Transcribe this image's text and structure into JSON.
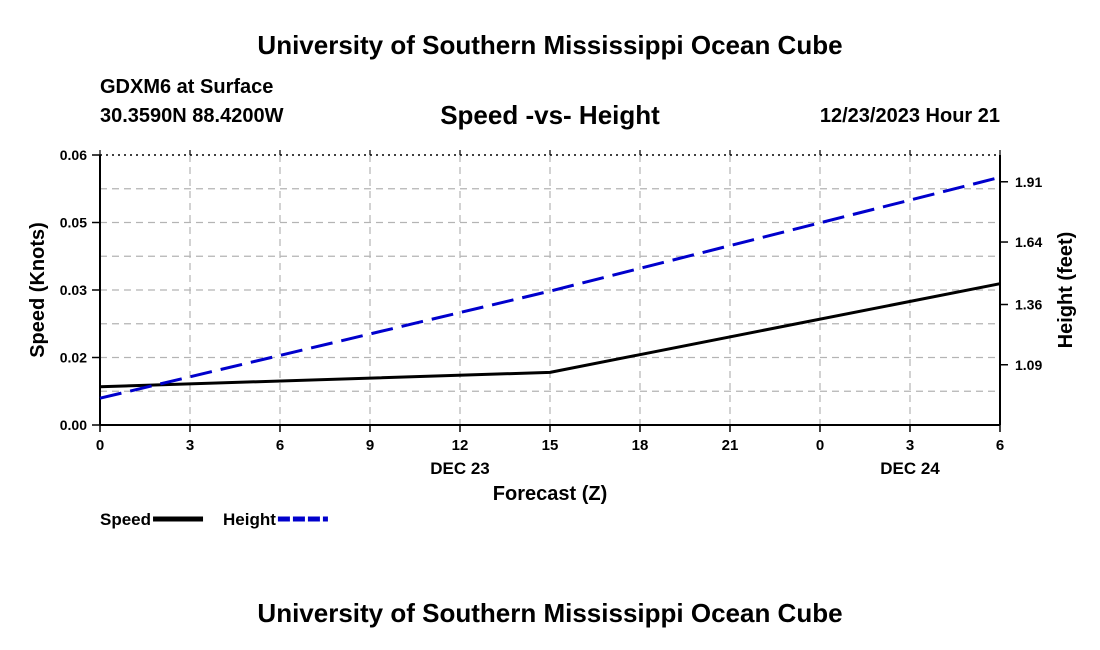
{
  "header": {
    "title": "University of Southern Mississippi Ocean Cube",
    "station": "GDXM6 at Surface",
    "coords": "30.3590N  88.4200W",
    "timestamp": "12/23/2023 Hour 21"
  },
  "footer": {
    "title": "University of Southern Mississippi Ocean Cube"
  },
  "colors": {
    "speed": "#000000",
    "height": "#0000cc",
    "grid": "#b4b4b4"
  },
  "chart_data": {
    "type": "line",
    "title": "Speed -vs- Height",
    "xlabel": "Forecast (Z)",
    "ylabel": "Speed (Knots)",
    "y2label": "Height (feet)",
    "x_ticks": [
      "0",
      "3",
      "6",
      "9",
      "12",
      "15",
      "18",
      "21",
      "0",
      "3",
      "6"
    ],
    "date_labels": [
      {
        "tick_index": 4,
        "label": "DEC 23"
      },
      {
        "tick_index": 9,
        "label": "DEC 24"
      }
    ],
    "xlim": [
      0,
      30
    ],
    "ylim": [
      0,
      0.06
    ],
    "y_ticks": [
      "0.00",
      "0.02",
      "0.03",
      "0.05",
      "0.06"
    ],
    "y_tick_values": [
      0,
      0.015,
      0.03,
      0.045,
      0.06
    ],
    "y2lim": [
      0.82,
      2.03
    ],
    "y2_ticks": [
      "1.09",
      "1.36",
      "1.64",
      "1.91"
    ],
    "y2_tick_values": [
      1.09,
      1.36,
      1.64,
      1.91
    ],
    "series": [
      {
        "name": "Speed",
        "axis": "left",
        "style": "solid",
        "x": [
          0,
          15,
          30
        ],
        "values": [
          0.0085,
          0.0117,
          0.0314
        ]
      },
      {
        "name": "Height",
        "axis": "right",
        "style": "dashed",
        "x": [
          0,
          15,
          30
        ],
        "values": [
          0.94,
          1.42,
          1.93
        ]
      }
    ],
    "legend": [
      {
        "label": "Speed",
        "series": 0
      },
      {
        "label": "Height",
        "series": 1
      }
    ]
  }
}
